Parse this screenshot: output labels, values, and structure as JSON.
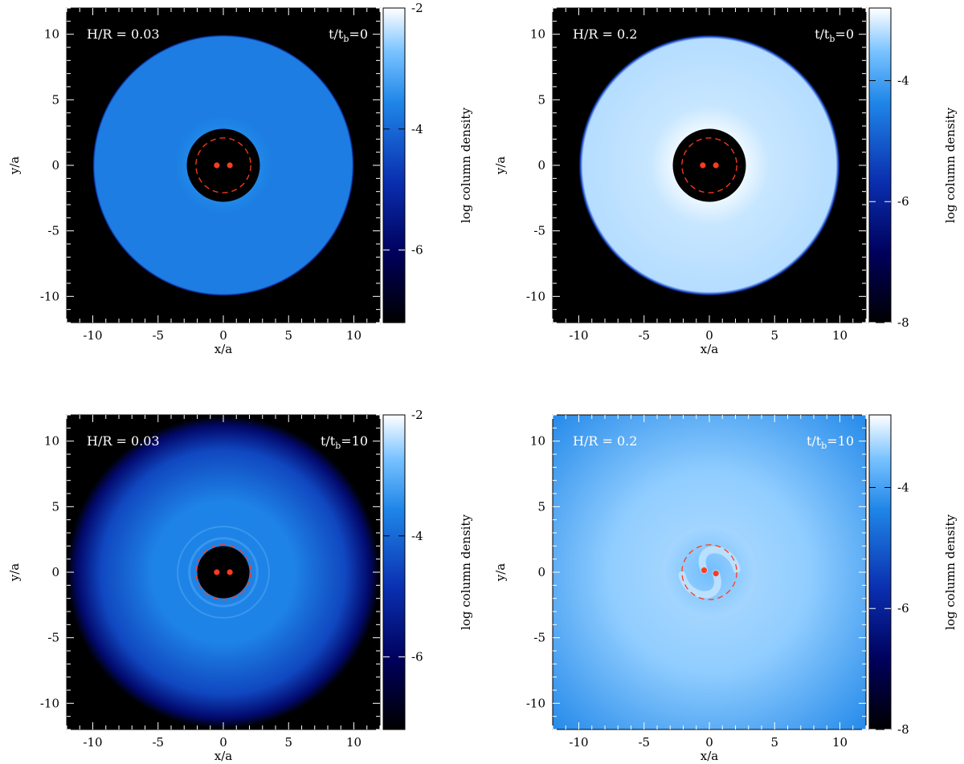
{
  "figure": {
    "colorbar_label": "log column density",
    "xlabel": "x/a",
    "ylabel": "y/a"
  },
  "chart_data": [
    {
      "type": "heatmap",
      "panel": "top-left",
      "annotation_left": "H/R = 0.03",
      "annotation_right_parts": [
        "t/t",
        "b",
        "=0"
      ],
      "xlabel": "x/a",
      "ylabel": "y/a",
      "xlim": [
        -12,
        12
      ],
      "ylim": [
        -12,
        12
      ],
      "xticks": [
        -10,
        -5,
        0,
        5,
        10
      ],
      "yticks": [
        -10,
        -5,
        0,
        5,
        10
      ],
      "colorbar": {
        "label": "log column density",
        "range": [
          -7.2,
          -2
        ],
        "ticks": [
          -2,
          -4,
          -6
        ]
      },
      "disc": {
        "inner_radius": 2.8,
        "outer_radius": 10,
        "log_density": -3.7,
        "profile": "flat"
      },
      "cavity_log_density": -7.2,
      "binary": {
        "positions": [
          [
            -0.5,
            0
          ],
          [
            0.5,
            0
          ]
        ]
      },
      "dashed_circle_radius": 2.1,
      "color_marker": "#ff3b1f"
    },
    {
      "type": "heatmap",
      "panel": "top-right",
      "annotation_left": "H/R = 0.2",
      "annotation_right_parts": [
        "t/t",
        "b",
        "=0"
      ],
      "xlabel": "x/a",
      "ylabel": "y/a",
      "xlim": [
        -12,
        12
      ],
      "ylim": [
        -12,
        12
      ],
      "xticks": [
        -10,
        -5,
        0,
        5,
        10
      ],
      "yticks": [
        -10,
        -5,
        0,
        5,
        10
      ],
      "colorbar": {
        "label": "log column density",
        "range": [
          -8,
          -2.8
        ],
        "ticks": [
          -4,
          -6,
          -8
        ]
      },
      "disc": {
        "inner_radius": 2.8,
        "outer_radius": 10,
        "log_density": -3.2,
        "inner_log_density": -2.9,
        "profile": "bright-inner"
      },
      "cavity_log_density": -8,
      "binary": {
        "positions": [
          [
            -0.5,
            0
          ],
          [
            0.5,
            0
          ]
        ]
      },
      "dashed_circle_radius": 2.1,
      "color_marker": "#ff3b1f"
    },
    {
      "type": "heatmap",
      "panel": "bottom-left",
      "annotation_left": "H/R = 0.03",
      "annotation_right_parts": [
        "t/t",
        "b",
        "=10"
      ],
      "xlabel": "x/a",
      "ylabel": "y/a",
      "xlim": [
        -12,
        12
      ],
      "ylim": [
        -12,
        12
      ],
      "xticks": [
        -10,
        -5,
        0,
        5,
        10
      ],
      "yticks": [
        -10,
        -5,
        0,
        5,
        10
      ],
      "colorbar": {
        "label": "log column density",
        "range": [
          -7.2,
          -2
        ],
        "ticks": [
          -2,
          -4,
          -6
        ]
      },
      "disc": {
        "inner_radius": 2.0,
        "outer_radius": 12,
        "log_density": -3.6,
        "edge_log_density": -5.8,
        "profile": "diffuse-edge",
        "rings": [
          2.6,
          3.5
        ]
      },
      "cavity_log_density": -7.2,
      "binary": {
        "positions": [
          [
            -0.5,
            0
          ],
          [
            0.5,
            0
          ]
        ]
      },
      "dashed_circle_radius": 2.1,
      "color_marker": "#ff3b1f"
    },
    {
      "type": "heatmap",
      "panel": "bottom-right",
      "annotation_left": "H/R = 0.2",
      "annotation_right_parts": [
        "t/t",
        "b",
        "=10"
      ],
      "xlabel": "x/a",
      "ylabel": "y/a",
      "xlim": [
        -12,
        12
      ],
      "ylim": [
        -12,
        12
      ],
      "xticks": [
        -10,
        -5,
        0,
        5,
        10
      ],
      "yticks": [
        -10,
        -5,
        0,
        5,
        10
      ],
      "colorbar": {
        "label": "log column density",
        "range": [
          -8,
          -2.8
        ],
        "ticks": [
          -4,
          -6,
          -8
        ]
      },
      "disc": {
        "inner_radius": 0,
        "outer_radius": 17,
        "log_density": -3.3,
        "edge_log_density": -4.3,
        "profile": "filled-spiral"
      },
      "cavity_log_density": -3.6,
      "binary": {
        "positions": [
          [
            -0.4,
            0.15
          ],
          [
            0.5,
            -0.1
          ]
        ]
      },
      "dashed_circle_radius": 2.1,
      "color_marker": "#ff3b1f"
    }
  ]
}
